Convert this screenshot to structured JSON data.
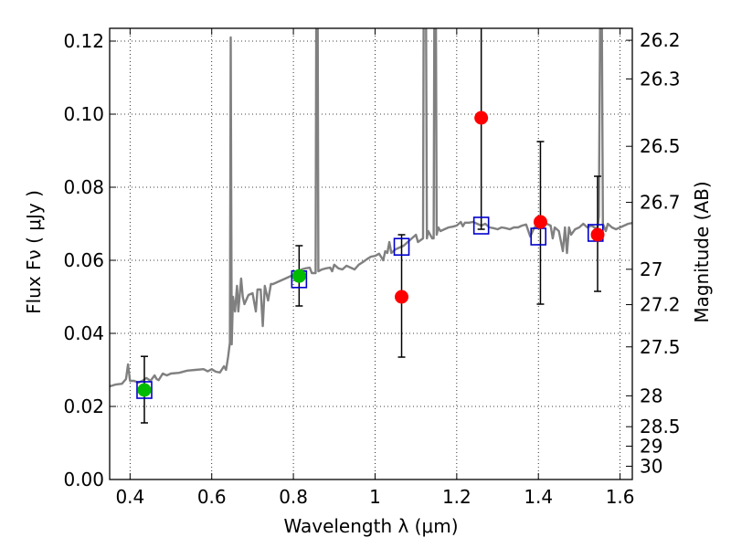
{
  "chart_data": {
    "type": "scatter",
    "xlabel": "Wavelength  λ (μm)",
    "ylabel": "Flux  Fν  ( μJy )",
    "y2label": "Magnitude (AB)",
    "xlim": [
      0.35,
      1.63
    ],
    "ylim": [
      0.0,
      0.1235
    ],
    "grid": true,
    "x_ticks": [
      {
        "value": 0.4,
        "label": "0.4"
      },
      {
        "value": 0.6,
        "label": "0.6"
      },
      {
        "value": 0.8,
        "label": "0.8"
      },
      {
        "value": 1.0,
        "label": "1"
      },
      {
        "value": 1.2,
        "label": "1.2"
      },
      {
        "value": 1.4,
        "label": "1.4"
      },
      {
        "value": 1.6,
        "label": "1.6"
      }
    ],
    "y_ticks": [
      {
        "value": 0.0,
        "label": "0.00"
      },
      {
        "value": 0.02,
        "label": "0.02"
      },
      {
        "value": 0.04,
        "label": "0.04"
      },
      {
        "value": 0.06,
        "label": "0.06"
      },
      {
        "value": 0.08,
        "label": "0.08"
      },
      {
        "value": 0.1,
        "label": "0.10"
      },
      {
        "value": 0.12,
        "label": "0.12"
      }
    ],
    "mag_ticks": [
      {
        "value": 26.2,
        "label": "26.2"
      },
      {
        "value": 26.3,
        "label": "26.3"
      },
      {
        "value": 26.5,
        "label": "26.5"
      },
      {
        "value": 26.7,
        "label": "26.7"
      },
      {
        "value": 27.0,
        "label": "27"
      },
      {
        "value": 27.2,
        "label": "27.2"
      },
      {
        "value": 27.5,
        "label": "27.5"
      },
      {
        "value": 28.0,
        "label": "28"
      },
      {
        "value": 28.5,
        "label": "28.5"
      },
      {
        "value": 29.0,
        "label": "29"
      },
      {
        "value": 30.0,
        "label": "30"
      }
    ],
    "model_spectrum": {
      "name": "model SED",
      "color": "#808080",
      "points": [
        [
          0.35,
          0.0255
        ],
        [
          0.365,
          0.026
        ],
        [
          0.38,
          0.0262
        ],
        [
          0.39,
          0.0275
        ],
        [
          0.395,
          0.0315
        ],
        [
          0.4,
          0.027
        ],
        [
          0.41,
          0.027
        ],
        [
          0.42,
          0.0265
        ],
        [
          0.43,
          0.027
        ],
        [
          0.44,
          0.0278
        ],
        [
          0.45,
          0.027
        ],
        [
          0.46,
          0.0285
        ],
        [
          0.465,
          0.0275
        ],
        [
          0.47,
          0.0272
        ],
        [
          0.48,
          0.029
        ],
        [
          0.49,
          0.0285
        ],
        [
          0.5,
          0.029
        ],
        [
          0.52,
          0.0292
        ],
        [
          0.54,
          0.0298
        ],
        [
          0.56,
          0.03
        ],
        [
          0.58,
          0.0302
        ],
        [
          0.59,
          0.0296
        ],
        [
          0.6,
          0.0302
        ],
        [
          0.61,
          0.0295
        ],
        [
          0.62,
          0.0293
        ],
        [
          0.63,
          0.031
        ],
        [
          0.635,
          0.03
        ],
        [
          0.64,
          0.0335
        ],
        [
          0.6445,
          0.0375
        ],
        [
          0.6465,
          0.121
        ],
        [
          0.649,
          0.037
        ],
        [
          0.652,
          0.05
        ],
        [
          0.657,
          0.046
        ],
        [
          0.662,
          0.053
        ],
        [
          0.665,
          0.046
        ],
        [
          0.672,
          0.055
        ],
        [
          0.676,
          0.05
        ],
        [
          0.68,
          0.048
        ],
        [
          0.69,
          0.0505
        ],
        [
          0.7,
          0.051
        ],
        [
          0.708,
          0.046
        ],
        [
          0.712,
          0.052
        ],
        [
          0.72,
          0.052
        ],
        [
          0.725,
          0.042
        ],
        [
          0.73,
          0.053
        ],
        [
          0.738,
          0.049
        ],
        [
          0.745,
          0.0535
        ],
        [
          0.75,
          0.0535
        ],
        [
          0.76,
          0.054
        ],
        [
          0.77,
          0.0545
        ],
        [
          0.78,
          0.055
        ],
        [
          0.79,
          0.0555
        ],
        [
          0.8,
          0.056
        ],
        [
          0.81,
          0.0565
        ],
        [
          0.82,
          0.0575
        ],
        [
          0.83,
          0.0578
        ],
        [
          0.84,
          0.058
        ],
        [
          0.845,
          0.0565
        ],
        [
          0.8545,
          0.0565
        ],
        [
          0.856,
          0.124
        ],
        [
          0.8595,
          0.124
        ],
        [
          0.861,
          0.057
        ],
        [
          0.87,
          0.0575
        ],
        [
          0.88,
          0.0578
        ],
        [
          0.89,
          0.058
        ],
        [
          0.895,
          0.057
        ],
        [
          0.9,
          0.0588
        ],
        [
          0.91,
          0.0578
        ],
        [
          0.92,
          0.0575
        ],
        [
          0.93,
          0.0585
        ],
        [
          0.94,
          0.058
        ],
        [
          0.95,
          0.0575
        ],
        [
          0.96,
          0.0588
        ],
        [
          0.97,
          0.0595
        ],
        [
          0.98,
          0.0603
        ],
        [
          0.99,
          0.061
        ],
        [
          1.0,
          0.0612
        ],
        [
          1.01,
          0.0618
        ],
        [
          1.02,
          0.06
        ],
        [
          1.025,
          0.0625
        ],
        [
          1.03,
          0.062
        ],
        [
          1.035,
          0.065
        ],
        [
          1.04,
          0.062
        ],
        [
          1.05,
          0.063
        ],
        [
          1.06,
          0.0635
        ],
        [
          1.07,
          0.064
        ],
        [
          1.08,
          0.065
        ],
        [
          1.09,
          0.066
        ],
        [
          1.1,
          0.067
        ],
        [
          1.105,
          0.065
        ],
        [
          1.1175,
          0.066
        ],
        [
          1.119,
          0.124
        ],
        [
          1.125,
          0.124
        ],
        [
          1.127,
          0.066
        ],
        [
          1.13,
          0.068
        ],
        [
          1.14,
          0.066
        ],
        [
          1.1435,
          0.066
        ],
        [
          1.145,
          0.124
        ],
        [
          1.149,
          0.124
        ],
        [
          1.151,
          0.067
        ],
        [
          1.155,
          0.069
        ],
        [
          1.16,
          0.068
        ],
        [
          1.17,
          0.0685
        ],
        [
          1.18,
          0.069
        ],
        [
          1.19,
          0.0692
        ],
        [
          1.2,
          0.0695
        ],
        [
          1.21,
          0.0705
        ],
        [
          1.215,
          0.0693
        ],
        [
          1.22,
          0.0703
        ],
        [
          1.23,
          0.0703
        ],
        [
          1.24,
          0.0705
        ],
        [
          1.25,
          0.07
        ],
        [
          1.26,
          0.0695
        ],
        [
          1.27,
          0.07
        ],
        [
          1.28,
          0.069
        ],
        [
          1.29,
          0.0688
        ],
        [
          1.3,
          0.0685
        ],
        [
          1.31,
          0.069
        ],
        [
          1.32,
          0.0688
        ],
        [
          1.33,
          0.0685
        ],
        [
          1.34,
          0.069
        ],
        [
          1.35,
          0.069
        ],
        [
          1.36,
          0.0695
        ],
        [
          1.37,
          0.0698
        ],
        [
          1.38,
          0.0665
        ],
        [
          1.39,
          0.069
        ],
        [
          1.4,
          0.0695
        ],
        [
          1.41,
          0.0695
        ],
        [
          1.42,
          0.07
        ],
        [
          1.43,
          0.0695
        ],
        [
          1.435,
          0.066
        ],
        [
          1.44,
          0.069
        ],
        [
          1.45,
          0.068
        ],
        [
          1.46,
          0.0625
        ],
        [
          1.465,
          0.069
        ],
        [
          1.47,
          0.062
        ],
        [
          1.475,
          0.069
        ],
        [
          1.48,
          0.067
        ],
        [
          1.49,
          0.0685
        ],
        [
          1.5,
          0.069
        ],
        [
          1.51,
          0.07
        ],
        [
          1.52,
          0.069
        ],
        [
          1.53,
          0.0695
        ],
        [
          1.54,
          0.0688
        ],
        [
          1.545,
          0.069
        ],
        [
          1.548,
          0.072
        ],
        [
          1.551,
          0.124
        ],
        [
          1.5555,
          0.124
        ],
        [
          1.558,
          0.07
        ],
        [
          1.565,
          0.068
        ],
        [
          1.57,
          0.07
        ],
        [
          1.58,
          0.069
        ],
        [
          1.59,
          0.0685
        ],
        [
          1.6,
          0.069
        ],
        [
          1.61,
          0.0695
        ],
        [
          1.62,
          0.07
        ],
        [
          1.63,
          0.0702
        ]
      ]
    },
    "model_photometry": {
      "name": "model band fluxes",
      "color": "#0000cc",
      "points": [
        [
          0.435,
          0.0245
        ],
        [
          0.814,
          0.0548
        ],
        [
          1.065,
          0.0637
        ],
        [
          1.26,
          0.0695
        ],
        [
          1.4,
          0.0665
        ],
        [
          1.54,
          0.0675
        ]
      ]
    },
    "series": [
      {
        "name": "detections",
        "color": "#00bb00",
        "points": [
          {
            "x": 0.435,
            "y": 0.0245,
            "err": [
              0.0155,
              0.0337
            ]
          },
          {
            "x": 0.814,
            "y": 0.0557,
            "err": [
              0.0475,
              0.064
            ]
          }
        ]
      },
      {
        "name": "non-detections",
        "color": "#ff0000",
        "points": [
          {
            "x": 1.065,
            "y": 0.05,
            "err": [
              0.0335,
              0.067
            ]
          },
          {
            "x": 1.26,
            "y": 0.099,
            "err": [
              0.0685,
              0.1235
            ]
          },
          {
            "x": 1.405,
            "y": 0.0705,
            "err": [
              0.048,
              0.0925
            ]
          },
          {
            "x": 1.545,
            "y": 0.067,
            "err": [
              0.0515,
              0.083
            ]
          }
        ]
      }
    ]
  }
}
